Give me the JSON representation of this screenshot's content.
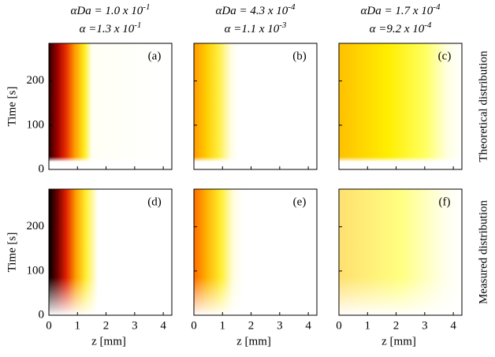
{
  "column_titles": [
    [
      {
        "text": "αDa = 1.0 x 10",
        "sup": "-1"
      },
      {
        "text": "α =1.3 x 10",
        "sup": "-1"
      }
    ],
    [
      {
        "text": "αDa = 4.3 x 10",
        "sup": "-4"
      },
      {
        "text": "α =1.1 x 10",
        "sup": "-3"
      }
    ],
    [
      {
        "text": "αDa = 1.7 x 10",
        "sup": "-4"
      },
      {
        "text": "α =9.2 x 10",
        "sup": "-4"
      }
    ]
  ],
  "row_labels": [
    "Theoretical distribution",
    "Measured distribution"
  ],
  "chart_data": [
    {
      "type": "heatmap",
      "label": "(a)",
      "ylabel": "Time [s]",
      "xlim": [
        0,
        4.3
      ],
      "ylim": [
        0,
        285
      ],
      "xticks": [
        0,
        1,
        2,
        3,
        4
      ],
      "yticks": [
        0,
        100,
        200
      ],
      "xtick_labels": false,
      "ytick_labels": true
    },
    {
      "type": "heatmap",
      "label": "(b)",
      "xlim": [
        0,
        4.3
      ],
      "ylim": [
        0,
        285
      ],
      "xticks": [
        0,
        1,
        2,
        3,
        4
      ],
      "yticks": [
        0,
        100,
        200
      ],
      "xtick_labels": false,
      "ytick_labels": false
    },
    {
      "type": "heatmap",
      "label": "(c)",
      "xlim": [
        0,
        4.3
      ],
      "ylim": [
        0,
        285
      ],
      "xticks": [
        0,
        1,
        2,
        3,
        4
      ],
      "yticks": [
        0,
        100,
        200
      ],
      "xtick_labels": false,
      "ytick_labels": false
    },
    {
      "type": "heatmap",
      "label": "(d)",
      "ylabel": "Time [s]",
      "xlabel": "z [mm]",
      "xlim": [
        0,
        4.3
      ],
      "ylim": [
        0,
        285
      ],
      "xticks": [
        0,
        1,
        2,
        3,
        4
      ],
      "yticks": [
        0,
        100,
        200
      ],
      "xtick_labels": true,
      "ytick_labels": true
    },
    {
      "type": "heatmap",
      "label": "(e)",
      "xlabel": "z [mm]",
      "xlim": [
        0,
        4.3
      ],
      "ylim": [
        0,
        285
      ],
      "xticks": [
        0,
        1,
        2,
        3,
        4
      ],
      "yticks": [
        0,
        100,
        200
      ],
      "xtick_labels": true,
      "ytick_labels": false
    },
    {
      "type": "heatmap",
      "label": "(f)",
      "xlabel": "z [mm]",
      "xlim": [
        0,
        4.3
      ],
      "ylim": [
        0,
        285
      ],
      "xticks": [
        0,
        1,
        2,
        3,
        4
      ],
      "yticks": [
        0,
        100,
        200
      ],
      "xtick_labels": true,
      "ytick_labels": false
    }
  ]
}
